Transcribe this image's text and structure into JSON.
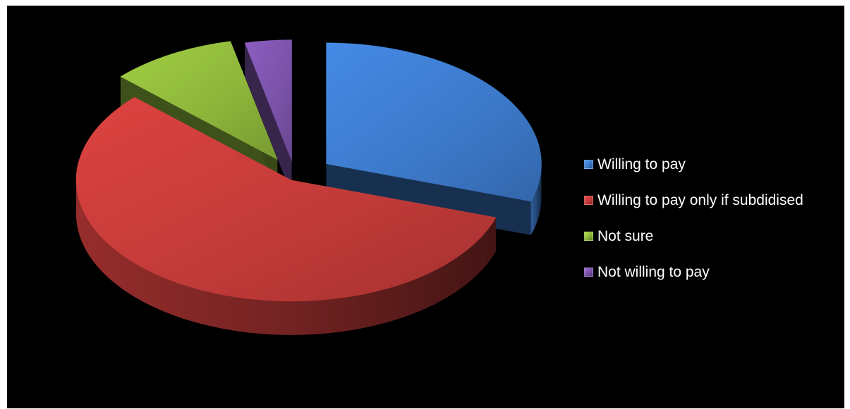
{
  "chart_data": {
    "type": "pie",
    "title": "",
    "categories": [
      "Willing to pay",
      "Willing to pay only if subdidised",
      "Not sure",
      "Not willing to pay"
    ],
    "values": [
      30,
      57,
      9.5,
      3.5
    ],
    "unit": "%",
    "exploded": true,
    "three_d": true,
    "legend_position": "right",
    "colors": [
      "#3c78c8",
      "#c03a38",
      "#8cb43a",
      "#7a52a8"
    ]
  },
  "legend": {
    "items": [
      {
        "label": "Willing to pay",
        "color": "#3c78c8"
      },
      {
        "label": "Willing to pay only if subdidised",
        "color": "#c03a38"
      },
      {
        "label": "Not sure",
        "color": "#8cb43a"
      },
      {
        "label": "Not willing to pay",
        "color": "#7a52a8"
      }
    ]
  },
  "background_color": "#000000"
}
